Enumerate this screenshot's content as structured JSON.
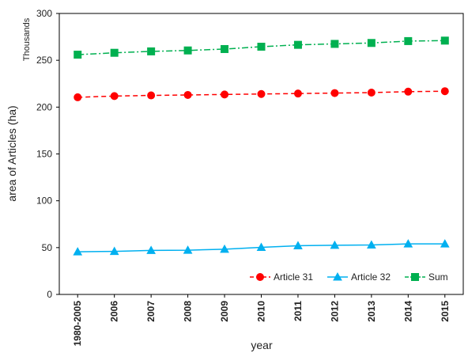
{
  "chart_data": {
    "type": "line",
    "categories": [
      "1980-2005",
      "2006",
      "2007",
      "2008",
      "2009",
      "2010",
      "2011",
      "2012",
      "2013",
      "2014",
      "2015"
    ],
    "ylim": [
      0,
      300
    ],
    "yticks": [
      0,
      50,
      100,
      150,
      200,
      250,
      300
    ],
    "ylabel": "area of Articles (ha)",
    "yunit": "Thousands",
    "xlabel": "year",
    "legend_position": "bottom-right",
    "series": [
      {
        "name": "Article 31",
        "color": "#ff0000",
        "marker": "circle",
        "line_style": "dashed",
        "values": [
          210.5,
          211.8,
          212.5,
          213.0,
          213.5,
          214.0,
          214.5,
          215.0,
          215.5,
          216.5,
          217.0
        ]
      },
      {
        "name": "Article 32",
        "color": "#00b0f0",
        "marker": "triangle",
        "line_style": "solid",
        "values": [
          45.5,
          46.0,
          47.0,
          47.2,
          48.3,
          50.3,
          52.0,
          52.5,
          52.8,
          54.0,
          54.0
        ]
      },
      {
        "name": "Sum",
        "color": "#00b050",
        "marker": "square",
        "line_style": "dash-dot",
        "values": [
          256.0,
          258.0,
          259.5,
          260.5,
          262.0,
          264.5,
          266.5,
          267.5,
          268.5,
          270.5,
          271.0
        ]
      }
    ]
  }
}
